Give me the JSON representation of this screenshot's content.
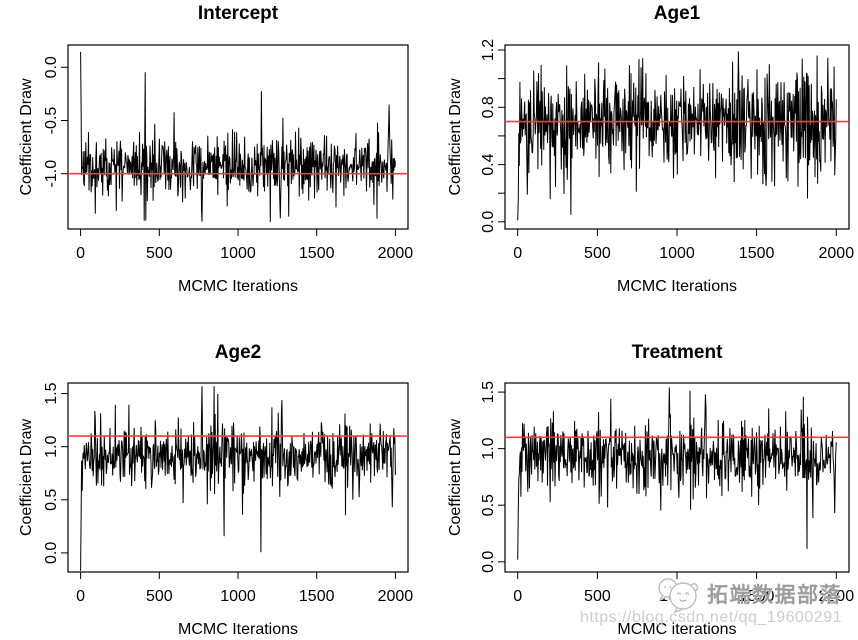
{
  "figure": {
    "background": "#ffffff",
    "trace_color": "#000000",
    "axis_color": "#000000",
    "description_rows": 2,
    "description_cols": 2
  },
  "watermark": {
    "icon": "chat-bubbles-face-icon",
    "brand_text": "拓端数据部落",
    "url_text": "https://blog.csdn.net/qq_19600291",
    "brand_color": "#9c9c9c",
    "url_color": "#cdcdcd"
  },
  "chart_data": [
    {
      "id": "intercept",
      "type": "line",
      "title": "Intercept",
      "xlabel": "MCMC Iterations",
      "ylabel": "Coefficient Draw",
      "x_ticks": [
        0,
        500,
        1000,
        1500,
        2000
      ],
      "x_tick_labels": [
        "0",
        "500",
        "1000",
        "1500",
        "2000"
      ],
      "xlim": [
        -80,
        2080
      ],
      "y_ticks": [
        0,
        -0.5,
        -1
      ],
      "y_tick_labels": [
        "0.0",
        "-0.5",
        "-1.0"
      ],
      "y_minor_ticks": [],
      "ylim": [
        -1.52,
        0.21
      ],
      "n_iterations": 2000,
      "line_color": "#000000",
      "reference_line": {
        "value": -1.0,
        "color": "#ff3b3b"
      },
      "trace_summary": {
        "first_draw": 0.145,
        "stationary_mean": -0.93,
        "spread_sd": 0.135,
        "min": -1.45,
        "max": 0.145
      },
      "notable_extremes": [
        {
          "iteration": 770,
          "value": -1.45
        },
        {
          "iteration": 1270,
          "value": -1.42
        },
        {
          "iteration": 1960,
          "value": -0.35
        }
      ],
      "render": {
        "seed": 11,
        "points": 600,
        "phi": -0.22,
        "settle": 1.2,
        "spike_prob": 0.05,
        "clip": [
          -1.46,
          0.15
        ]
      }
    },
    {
      "id": "age1",
      "type": "line",
      "title": "Age1",
      "xlabel": "MCMC Iterations",
      "ylabel": "Coefficient Draw",
      "x_ticks": [
        0,
        500,
        1000,
        1500,
        2000
      ],
      "x_tick_labels": [
        "0",
        "500",
        "1000",
        "1500",
        "2000"
      ],
      "xlim": [
        -80,
        2080
      ],
      "y_ticks": [
        0,
        0.4,
        0.8,
        1.2
      ],
      "y_tick_labels": [
        "0.0",
        "0.4",
        "0.8",
        "1.2"
      ],
      "y_minor_ticks": [
        0.2,
        0.6,
        1.0
      ],
      "ylim": [
        -0.05,
        1.235
      ],
      "n_iterations": 2000,
      "line_color": "#000000",
      "reference_line": {
        "value": 0.7,
        "color": "#ff3b3b"
      },
      "trace_summary": {
        "first_draw": 0.01,
        "stationary_mean": 0.7,
        "spread_sd": 0.165,
        "min": 0.0,
        "max": 1.19
      },
      "notable_extremes": [
        {
          "iteration": 60,
          "value": 0.19
        },
        {
          "iteration": 1385,
          "value": 1.19
        },
        {
          "iteration": 1560,
          "value": 0.25
        }
      ],
      "render": {
        "seed": 23,
        "points": 600,
        "phi": -0.22,
        "settle": 2,
        "spike_prob": 0.05,
        "clip": [
          0.0,
          1.21
        ]
      }
    },
    {
      "id": "age2",
      "type": "line",
      "title": "Age2",
      "xlabel": "MCMC Iterations",
      "ylabel": "Coefficient Draw",
      "x_ticks": [
        0,
        500,
        1000,
        1500,
        2000
      ],
      "x_tick_labels": [
        "0",
        "500",
        "1000",
        "1500",
        "2000"
      ],
      "xlim": [
        -80,
        2080
      ],
      "y_ticks": [
        0,
        0.5,
        1.0,
        1.5
      ],
      "y_tick_labels": [
        "0.0",
        "0.5",
        "1.0",
        "1.5"
      ],
      "y_minor_ticks": [],
      "ylim": [
        -0.18,
        1.6
      ],
      "n_iterations": 2000,
      "line_color": "#000000",
      "reference_line": {
        "value": 1.1,
        "color": "#ff3b3b"
      },
      "trace_summary": {
        "first_draw": -0.17,
        "stationary_mean": 0.92,
        "spread_sd": 0.15,
        "min": -0.17,
        "max": 1.57
      },
      "notable_extremes": [
        {
          "iteration": 770,
          "value": 1.57
        },
        {
          "iteration": 1280,
          "value": 1.44
        },
        {
          "iteration": 1980,
          "value": 0.43
        }
      ],
      "render": {
        "seed": 37,
        "points": 600,
        "phi": -0.22,
        "settle": 1.5,
        "spike_prob": 0.05,
        "clip": [
          -0.17,
          1.58
        ]
      }
    },
    {
      "id": "treatment",
      "type": "line",
      "title": "Treatment",
      "xlabel": "MCMC iterations",
      "ylabel": "Coefficient Draw",
      "x_ticks": [
        0,
        500,
        1000,
        1500,
        2000
      ],
      "x_tick_labels": [
        "0",
        "500",
        "1000",
        "1500",
        "2000"
      ],
      "xlim": [
        -80,
        2080
      ],
      "y_ticks": [
        0,
        0.5,
        1.0,
        1.5
      ],
      "y_tick_labels": [
        "0.0",
        "0.5",
        "1.0",
        "1.5"
      ],
      "y_minor_ticks": [],
      "ylim": [
        -0.09,
        1.58
      ],
      "n_iterations": 2000,
      "line_color": "#000000",
      "reference_line": {
        "value": 1.1,
        "color": "#ff3b3b"
      },
      "trace_summary": {
        "first_draw": 0.02,
        "stationary_mean": 0.93,
        "spread_sd": 0.15,
        "min": 0.0,
        "max": 1.54
      },
      "notable_extremes": [
        {
          "iteration": 950,
          "value": 1.54
        },
        {
          "iteration": 1180,
          "value": 1.48
        },
        {
          "iteration": 1990,
          "value": 0.43
        }
      ],
      "render": {
        "seed": 53,
        "points": 600,
        "phi": -0.22,
        "settle": 1.5,
        "spike_prob": 0.05,
        "clip": [
          0.0,
          1.55
        ]
      }
    }
  ]
}
